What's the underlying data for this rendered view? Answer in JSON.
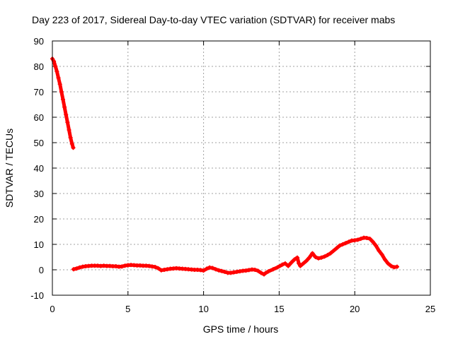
{
  "chart_data": {
    "type": "scatter",
    "title": "Day 223 of 2017, Sidereal Day-to-day VTEC variation (SDTVAR) for receiver mabs",
    "xlabel": "GPS time / hours",
    "ylabel": "SDTVAR / TECUs",
    "xlim": [
      0,
      25
    ],
    "ylim": [
      -10,
      90
    ],
    "xticks": [
      0,
      5,
      10,
      15,
      20,
      25
    ],
    "yticks": [
      -10,
      0,
      10,
      20,
      30,
      40,
      50,
      60,
      70,
      80,
      90
    ],
    "xtick_labels": [
      "0",
      "5",
      "10",
      "15",
      "20",
      "25"
    ],
    "ytick_labels": [
      "-10",
      "0",
      "10",
      "20",
      "30",
      "40",
      "50",
      "60",
      "70",
      "80",
      "90"
    ],
    "grid": true,
    "series_color": "#ff0000",
    "series": [
      {
        "name": "SDTVAR",
        "points": [
          [
            0.0,
            83.0
          ],
          [
            0.1,
            82.0
          ],
          [
            0.2,
            80.0
          ],
          [
            0.3,
            78.0
          ],
          [
            0.4,
            75.5
          ],
          [
            0.5,
            73.0
          ],
          [
            0.6,
            70.0
          ],
          [
            0.7,
            67.0
          ],
          [
            0.8,
            64.0
          ],
          [
            0.9,
            61.0
          ],
          [
            1.0,
            58.0
          ],
          [
            1.1,
            55.0
          ],
          [
            1.2,
            52.0
          ],
          [
            1.3,
            49.5
          ],
          [
            1.38,
            48.0
          ],
          [
            1.4,
            0.2
          ],
          [
            1.6,
            0.5
          ],
          [
            1.8,
            0.9
          ],
          [
            2.0,
            1.2
          ],
          [
            2.2,
            1.4
          ],
          [
            2.4,
            1.5
          ],
          [
            2.6,
            1.6
          ],
          [
            2.8,
            1.6
          ],
          [
            3.0,
            1.6
          ],
          [
            3.2,
            1.5
          ],
          [
            3.4,
            1.6
          ],
          [
            3.6,
            1.5
          ],
          [
            3.8,
            1.5
          ],
          [
            4.0,
            1.4
          ],
          [
            4.2,
            1.4
          ],
          [
            4.4,
            1.2
          ],
          [
            4.6,
            1.3
          ],
          [
            4.8,
            1.6
          ],
          [
            5.0,
            1.8
          ],
          [
            5.2,
            1.9
          ],
          [
            5.4,
            1.8
          ],
          [
            5.6,
            1.7
          ],
          [
            5.8,
            1.7
          ],
          [
            6.0,
            1.6
          ],
          [
            6.2,
            1.6
          ],
          [
            6.4,
            1.5
          ],
          [
            6.6,
            1.3
          ],
          [
            6.8,
            1.1
          ],
          [
            7.0,
            0.6
          ],
          [
            7.2,
            -0.2
          ],
          [
            7.4,
            0.0
          ],
          [
            7.6,
            0.2
          ],
          [
            7.8,
            0.4
          ],
          [
            8.0,
            0.5
          ],
          [
            8.2,
            0.6
          ],
          [
            8.4,
            0.5
          ],
          [
            8.6,
            0.4
          ],
          [
            8.8,
            0.3
          ],
          [
            9.0,
            0.2
          ],
          [
            9.2,
            0.1
          ],
          [
            9.4,
            0.0
          ],
          [
            9.6,
            0.0
          ],
          [
            9.8,
            -0.1
          ],
          [
            10.0,
            -0.3
          ],
          [
            10.2,
            0.4
          ],
          [
            10.4,
            0.9
          ],
          [
            10.6,
            0.7
          ],
          [
            10.8,
            0.2
          ],
          [
            11.0,
            -0.2
          ],
          [
            11.2,
            -0.5
          ],
          [
            11.4,
            -0.8
          ],
          [
            11.6,
            -1.2
          ],
          [
            11.8,
            -1.2
          ],
          [
            12.0,
            -1.0
          ],
          [
            12.2,
            -0.8
          ],
          [
            12.4,
            -0.6
          ],
          [
            12.6,
            -0.4
          ],
          [
            12.8,
            -0.3
          ],
          [
            13.0,
            -0.1
          ],
          [
            13.2,
            0.1
          ],
          [
            13.4,
            0.0
          ],
          [
            13.6,
            -0.4
          ],
          [
            13.8,
            -1.2
          ],
          [
            14.0,
            -1.8
          ],
          [
            14.1,
            -1.3
          ],
          [
            14.3,
            -0.6
          ],
          [
            14.6,
            0.2
          ],
          [
            14.9,
            1.0
          ],
          [
            15.2,
            2.0
          ],
          [
            15.4,
            2.5
          ],
          [
            15.6,
            1.5
          ],
          [
            15.8,
            2.8
          ],
          [
            16.0,
            4.0
          ],
          [
            16.2,
            4.8
          ],
          [
            16.3,
            2.5
          ],
          [
            16.4,
            1.5
          ],
          [
            16.6,
            2.5
          ],
          [
            16.8,
            3.5
          ],
          [
            17.0,
            4.8
          ],
          [
            17.2,
            6.5
          ],
          [
            17.4,
            5.0
          ],
          [
            17.6,
            4.5
          ],
          [
            17.8,
            4.8
          ],
          [
            18.0,
            5.2
          ],
          [
            18.2,
            5.8
          ],
          [
            18.4,
            6.5
          ],
          [
            18.6,
            7.5
          ],
          [
            18.8,
            8.5
          ],
          [
            19.0,
            9.5
          ],
          [
            19.2,
            10.0
          ],
          [
            19.4,
            10.5
          ],
          [
            19.6,
            11.0
          ],
          [
            19.8,
            11.5
          ],
          [
            20.0,
            11.6
          ],
          [
            20.2,
            11.8
          ],
          [
            20.4,
            12.2
          ],
          [
            20.6,
            12.6
          ],
          [
            20.8,
            12.5
          ],
          [
            21.0,
            12.2
          ],
          [
            21.2,
            11.0
          ],
          [
            21.4,
            9.5
          ],
          [
            21.6,
            7.5
          ],
          [
            21.8,
            6.0
          ],
          [
            22.0,
            4.0
          ],
          [
            22.2,
            2.5
          ],
          [
            22.4,
            1.5
          ],
          [
            22.6,
            1.0
          ],
          [
            22.8,
            1.2
          ]
        ]
      }
    ]
  }
}
